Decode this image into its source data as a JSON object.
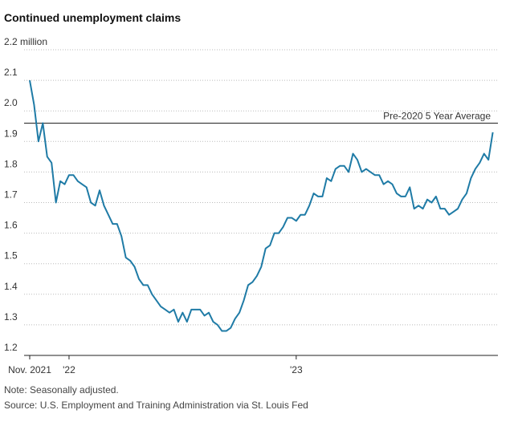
{
  "chart_data": {
    "type": "line",
    "title": "Continued unemployment claims",
    "note": "Note: Seasonally adjusted.",
    "source": "Source: U.S. Employment and Training Administration via St. Louis Fed",
    "categories": [
      "Nov. 2021",
      null,
      null,
      null,
      null,
      null,
      null,
      null,
      null,
      "'22",
      null,
      null,
      null,
      null,
      null,
      null,
      null,
      null,
      null,
      null,
      null,
      null,
      null,
      null,
      null,
      null,
      null,
      null,
      null,
      null,
      null,
      null,
      null,
      null,
      null,
      null,
      null,
      null,
      null,
      null,
      null,
      null,
      null,
      null,
      null,
      null,
      null,
      null,
      null,
      null,
      null,
      null,
      null,
      null,
      null,
      null,
      null,
      null,
      null,
      null,
      null,
      "'23",
      null,
      null,
      null,
      null,
      null,
      null,
      null,
      null,
      null,
      null,
      null,
      null,
      null,
      null,
      null,
      null,
      null,
      null,
      null,
      null,
      null,
      null,
      null,
      null,
      null,
      null,
      null,
      null,
      null,
      null,
      null,
      null,
      null,
      null,
      null,
      null,
      null,
      null,
      null,
      null,
      null,
      null,
      null,
      null,
      null
    ],
    "values": [
      2.1,
      2.02,
      1.9,
      1.96,
      1.85,
      1.83,
      1.7,
      1.77,
      1.76,
      1.79,
      1.79,
      1.77,
      1.76,
      1.75,
      1.7,
      1.69,
      1.74,
      1.69,
      1.66,
      1.63,
      1.63,
      1.59,
      1.52,
      1.51,
      1.49,
      1.45,
      1.43,
      1.43,
      1.4,
      1.38,
      1.36,
      1.35,
      1.34,
      1.35,
      1.31,
      1.34,
      1.31,
      1.35,
      1.35,
      1.35,
      1.33,
      1.34,
      1.31,
      1.3,
      1.28,
      1.28,
      1.29,
      1.32,
      1.34,
      1.38,
      1.43,
      1.44,
      1.46,
      1.49,
      1.55,
      1.56,
      1.6,
      1.6,
      1.62,
      1.65,
      1.65,
      1.64,
      1.66,
      1.66,
      1.69,
      1.73,
      1.72,
      1.72,
      1.78,
      1.77,
      1.81,
      1.82,
      1.82,
      1.8,
      1.86,
      1.84,
      1.8,
      1.81,
      1.8,
      1.79,
      1.79,
      1.76,
      1.77,
      1.76,
      1.73,
      1.72,
      1.72,
      1.75,
      1.68,
      1.69,
      1.68,
      1.71,
      1.7,
      1.72,
      1.68,
      1.68,
      1.66,
      1.67,
      1.68,
      1.71,
      1.73,
      1.78,
      1.81,
      1.83,
      1.86,
      1.84,
      1.93
    ],
    "color": "#1f7ba6",
    "ylim": [
      1.2,
      2.2
    ],
    "yticks": [
      1.2,
      1.3,
      1.4,
      1.5,
      1.6,
      1.7,
      1.8,
      1.9,
      {
        "value": 2,
        "label": "2.0"
      },
      2.1,
      {
        "value": 2.2,
        "label": "2.2 million"
      }
    ],
    "grid": true,
    "reference_line": {
      "text": "Pre-2020 5 Year Average",
      "value": 1.96
    }
  }
}
